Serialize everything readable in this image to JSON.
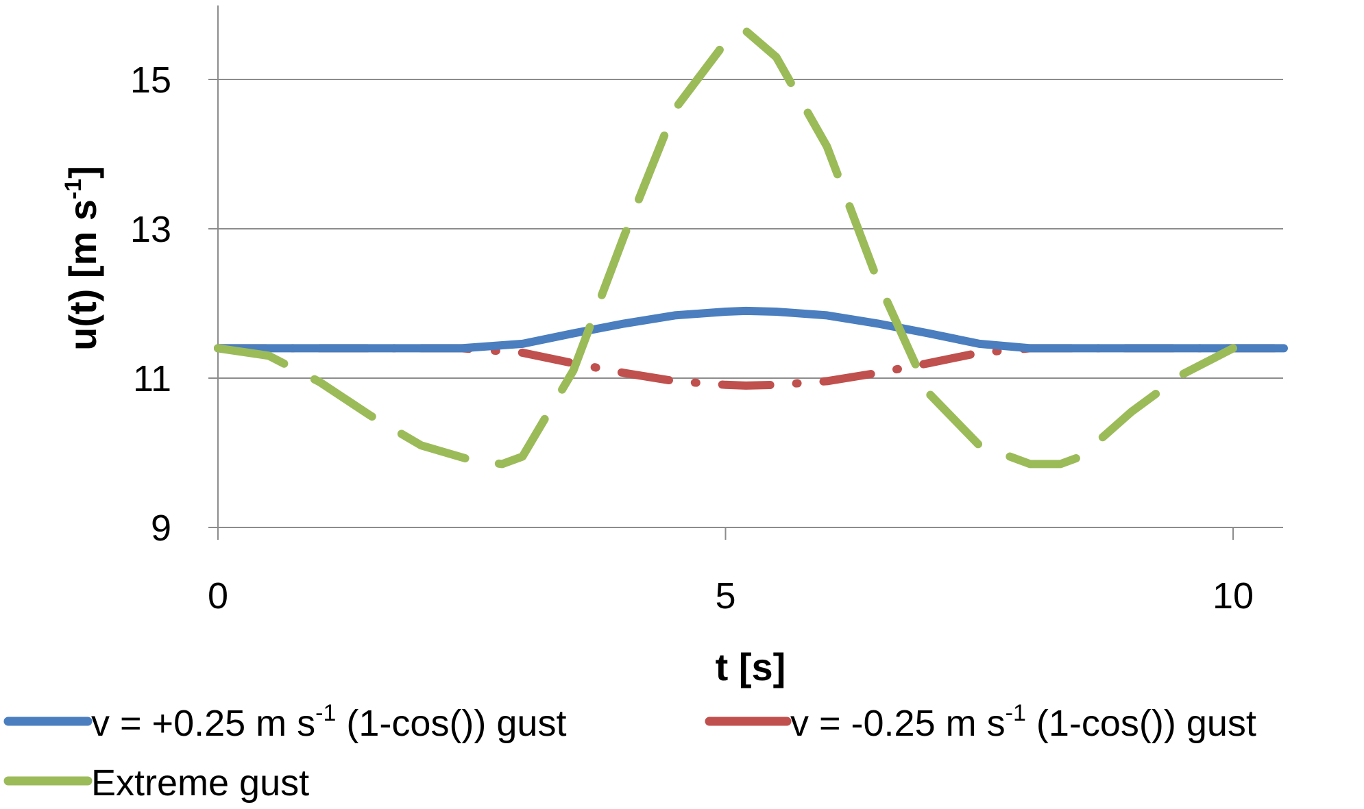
{
  "chart_data": {
    "type": "line",
    "xlabel": "t [s]",
    "ylabel": {
      "main": "u(t) [m s",
      "sup": "-1",
      "close": "]"
    },
    "xlim": [
      0,
      10.5
    ],
    "ylim": [
      9,
      16
    ],
    "x_ticks": [
      {
        "value": 0,
        "label": "0"
      },
      {
        "value": 5,
        "label": "5"
      },
      {
        "value": 10,
        "label": "10"
      }
    ],
    "y_ticks": [
      {
        "value": 9,
        "label": "9"
      },
      {
        "value": 11,
        "label": "11"
      },
      {
        "value": 13,
        "label": "13"
      },
      {
        "value": 15,
        "label": "15"
      }
    ],
    "grid": {
      "horizontal": true,
      "vertical": false
    },
    "legend_position": "bottom",
    "series": [
      {
        "name": {
          "pre": "v = +0.25 m s",
          "sup": "-1",
          "post": " (1-cos()) gust"
        },
        "color": "#4a7ebf",
        "dash": "solid",
        "x": [
          0,
          2.4,
          3.0,
          3.5,
          4.0,
          4.5,
          5.0,
          5.2,
          5.5,
          6.0,
          6.5,
          7.0,
          7.5,
          8.0,
          10.5
        ],
        "y": [
          11.4,
          11.4,
          11.46,
          11.6,
          11.73,
          11.84,
          11.89,
          11.9,
          11.89,
          11.84,
          11.73,
          11.6,
          11.46,
          11.4,
          11.4
        ]
      },
      {
        "name": {
          "pre": "v = -0.25 m s",
          "sup": "-1",
          "post": " (1-cos()) gust"
        },
        "color": "#c0504d",
        "dash": "dashdot",
        "x": [
          0,
          2.4,
          3.0,
          3.5,
          4.0,
          4.5,
          5.0,
          5.2,
          5.5,
          6.0,
          6.5,
          7.0,
          7.5,
          8.0,
          10.5
        ],
        "y": [
          11.4,
          11.4,
          11.34,
          11.2,
          11.07,
          10.96,
          10.91,
          10.9,
          10.91,
          10.96,
          11.07,
          11.2,
          11.34,
          11.4,
          11.4
        ]
      },
      {
        "name": {
          "pre": "Extreme gust",
          "sup": "",
          "post": ""
        },
        "color": "#9bbb59",
        "dash": "dashed",
        "x": [
          0,
          0.5,
          1.0,
          1.5,
          2.0,
          2.5,
          2.8,
          3.0,
          3.5,
          4.0,
          4.5,
          5.0,
          5.2,
          5.5,
          6.0,
          6.5,
          7.0,
          7.5,
          8.0,
          8.3,
          8.5,
          9.0,
          9.5,
          10.0
        ],
        "y": [
          11.4,
          11.3,
          10.95,
          10.5,
          10.1,
          9.9,
          9.85,
          9.95,
          11.1,
          12.9,
          14.6,
          15.5,
          15.65,
          15.3,
          14.1,
          12.3,
          10.8,
          10.1,
          9.85,
          9.85,
          9.95,
          10.55,
          11.05,
          11.4
        ]
      }
    ]
  }
}
